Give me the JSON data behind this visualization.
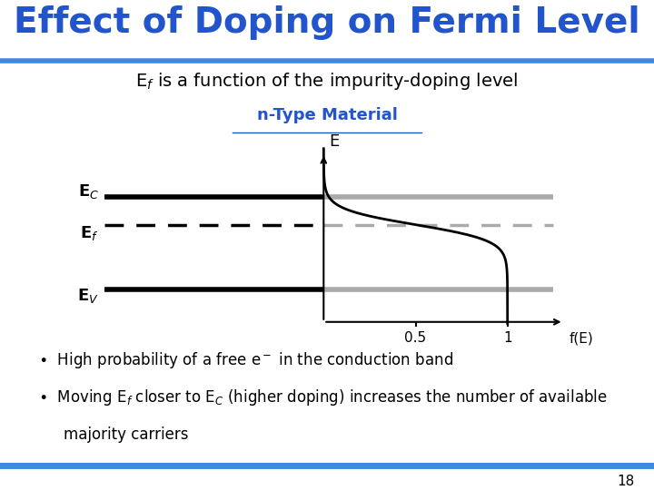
{
  "title": "Effect of Doping on Fermi Level",
  "title_color": "#2255CC",
  "subtitle": "E_f is a function of the impurity-doping level",
  "section_label": "n-Type Material",
  "section_label_color": "#2255CC",
  "background_color": "#FFFFFF",
  "header_bar_color": "#4488DD",
  "footer_bar_color": "#4488DD",
  "E_C": 0.75,
  "E_f": 0.58,
  "E_V": 0.18,
  "page_number": "18"
}
